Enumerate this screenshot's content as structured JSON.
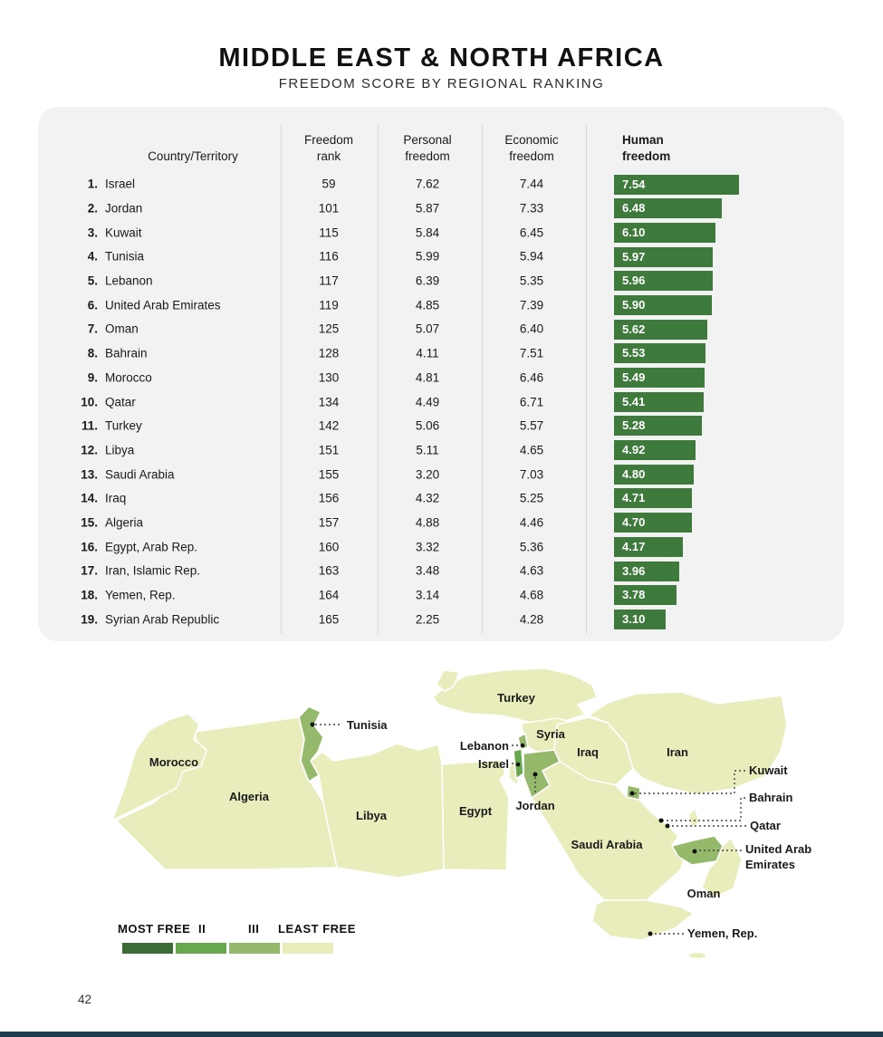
{
  "title": "MIDDLE EAST & NORTH AFRICA",
  "subtitle": "FREEDOM SCORE BY REGIONAL RANKING",
  "page_number": "42",
  "colors": {
    "bar_green": "#3f7a3d",
    "card_bg": "#f2f2f2",
    "bottom_bar": "#1d3c4e"
  },
  "table": {
    "headers": {
      "country": "Country/Territory",
      "freedom_rank": "Freedom\nrank",
      "personal_freedom": "Personal\nfreedom",
      "economic_freedom": "Economic\nfreedom",
      "human_freedom": "Human\nfreedom"
    },
    "rows": [
      {
        "num": "1.",
        "country": "Israel",
        "freedom_rank": "59",
        "personal": "7.62",
        "economic": "7.44",
        "human": "7.54"
      },
      {
        "num": "2.",
        "country": "Jordan",
        "freedom_rank": "101",
        "personal": "5.87",
        "economic": "7.33",
        "human": "6.48"
      },
      {
        "num": "3.",
        "country": "Kuwait",
        "freedom_rank": "115",
        "personal": "5.84",
        "economic": "6.45",
        "human": "6.10"
      },
      {
        "num": "4.",
        "country": "Tunisia",
        "freedom_rank": "116",
        "personal": "5.99",
        "economic": "5.94",
        "human": "5.97"
      },
      {
        "num": "5.",
        "country": "Lebanon",
        "freedom_rank": "117",
        "personal": "6.39",
        "economic": "5.35",
        "human": "5.96"
      },
      {
        "num": "6.",
        "country": "United Arab Emirates",
        "freedom_rank": "119",
        "personal": "4.85",
        "economic": "7.39",
        "human": "5.90"
      },
      {
        "num": "7.",
        "country": "Oman",
        "freedom_rank": "125",
        "personal": "5.07",
        "economic": "6.40",
        "human": "5.62"
      },
      {
        "num": "8.",
        "country": "Bahrain",
        "freedom_rank": "128",
        "personal": "4.11",
        "economic": "7.51",
        "human": "5.53"
      },
      {
        "num": "9.",
        "country": "Morocco",
        "freedom_rank": "130",
        "personal": "4.81",
        "economic": "6.46",
        "human": "5.49"
      },
      {
        "num": "10.",
        "country": "Qatar",
        "freedom_rank": "134",
        "personal": "4.49",
        "economic": "6.71",
        "human": "5.41"
      },
      {
        "num": "11.",
        "country": "Turkey",
        "freedom_rank": "142",
        "personal": "5.06",
        "economic": "5.57",
        "human": "5.28"
      },
      {
        "num": "12.",
        "country": "Libya",
        "freedom_rank": "151",
        "personal": "5.11",
        "economic": "4.65",
        "human": "4.92"
      },
      {
        "num": "13.",
        "country": "Saudi Arabia",
        "freedom_rank": "155",
        "personal": "3.20",
        "economic": "7.03",
        "human": "4.80"
      },
      {
        "num": "14.",
        "country": "Iraq",
        "freedom_rank": "156",
        "personal": "4.32",
        "economic": "5.25",
        "human": "4.71"
      },
      {
        "num": "15.",
        "country": "Algeria",
        "freedom_rank": "157",
        "personal": "4.88",
        "economic": "4.46",
        "human": "4.70"
      },
      {
        "num": "16.",
        "country": "Egypt, Arab Rep.",
        "freedom_rank": "160",
        "personal": "3.32",
        "economic": "5.36",
        "human": "4.17"
      },
      {
        "num": "17.",
        "country": "Iran, Islamic Rep.",
        "freedom_rank": "163",
        "personal": "3.48",
        "economic": "4.63",
        "human": "3.96"
      },
      {
        "num": "18.",
        "country": "Yemen, Rep.",
        "freedom_rank": "164",
        "personal": "3.14",
        "economic": "4.68",
        "human": "3.78"
      },
      {
        "num": "19.",
        "country": "Syrian Arab Republic",
        "freedom_rank": "165",
        "personal": "2.25",
        "economic": "4.28",
        "human": "3.10"
      }
    ]
  },
  "legend": {
    "labels": [
      "MOST FREE",
      "II",
      "III",
      "LEAST FREE"
    ],
    "colors": [
      "#3a6c35",
      "#67a84d",
      "#95b96b",
      "#e9ecbb"
    ]
  },
  "map": {
    "labels": {
      "morocco": "Morocco",
      "algeria": "Algeria",
      "tunisia": "Tunisia",
      "libya": "Libya",
      "egypt": "Egypt",
      "turkey": "Turkey",
      "syria": "Syria",
      "lebanon": "Lebanon",
      "israel": "Israel",
      "jordan": "Jordan",
      "iraq": "Iraq",
      "iran": "Iran",
      "kuwait": "Kuwait",
      "bahrain": "Bahrain",
      "qatar": "Qatar",
      "uae_line1": "United Arab",
      "uae_line2": "Emirates",
      "saudi": "Saudi Arabia",
      "oman": "Oman",
      "yemen": "Yemen, Rep."
    }
  },
  "chart_data": {
    "type": "bar",
    "title": "MIDDLE EAST & NORTH AFRICA",
    "subtitle": "FREEDOM SCORE BY REGIONAL RANKING",
    "categories": [
      "Israel",
      "Jordan",
      "Kuwait",
      "Tunisia",
      "Lebanon",
      "United Arab Emirates",
      "Oman",
      "Bahrain",
      "Morocco",
      "Qatar",
      "Turkey",
      "Libya",
      "Saudi Arabia",
      "Iraq",
      "Algeria",
      "Egypt, Arab Rep.",
      "Iran, Islamic Rep.",
      "Yemen, Rep.",
      "Syrian Arab Republic"
    ],
    "series": [
      {
        "name": "Freedom rank",
        "values": [
          59,
          101,
          115,
          116,
          117,
          119,
          125,
          128,
          130,
          134,
          142,
          151,
          155,
          156,
          157,
          160,
          163,
          164,
          165
        ]
      },
      {
        "name": "Personal freedom",
        "values": [
          7.62,
          5.87,
          5.84,
          5.99,
          6.39,
          4.85,
          5.07,
          4.11,
          4.81,
          4.49,
          5.06,
          5.11,
          3.2,
          4.32,
          4.88,
          3.32,
          3.48,
          3.14,
          2.25
        ]
      },
      {
        "name": "Economic freedom",
        "values": [
          7.44,
          7.33,
          6.45,
          5.94,
          5.35,
          7.39,
          6.4,
          7.51,
          6.46,
          6.71,
          5.57,
          4.65,
          7.03,
          5.25,
          4.46,
          5.36,
          4.63,
          4.68,
          4.28
        ]
      },
      {
        "name": "Human freedom",
        "values": [
          7.54,
          6.48,
          6.1,
          5.97,
          5.96,
          5.9,
          5.62,
          5.53,
          5.49,
          5.41,
          5.28,
          4.92,
          4.8,
          4.71,
          4.7,
          4.17,
          3.96,
          3.78,
          3.1
        ]
      }
    ],
    "bar_series_shown": "Human freedom",
    "xlim": [
      0,
      10
    ],
    "legend_quartiles": [
      "MOST FREE",
      "II",
      "III",
      "LEAST FREE"
    ]
  }
}
